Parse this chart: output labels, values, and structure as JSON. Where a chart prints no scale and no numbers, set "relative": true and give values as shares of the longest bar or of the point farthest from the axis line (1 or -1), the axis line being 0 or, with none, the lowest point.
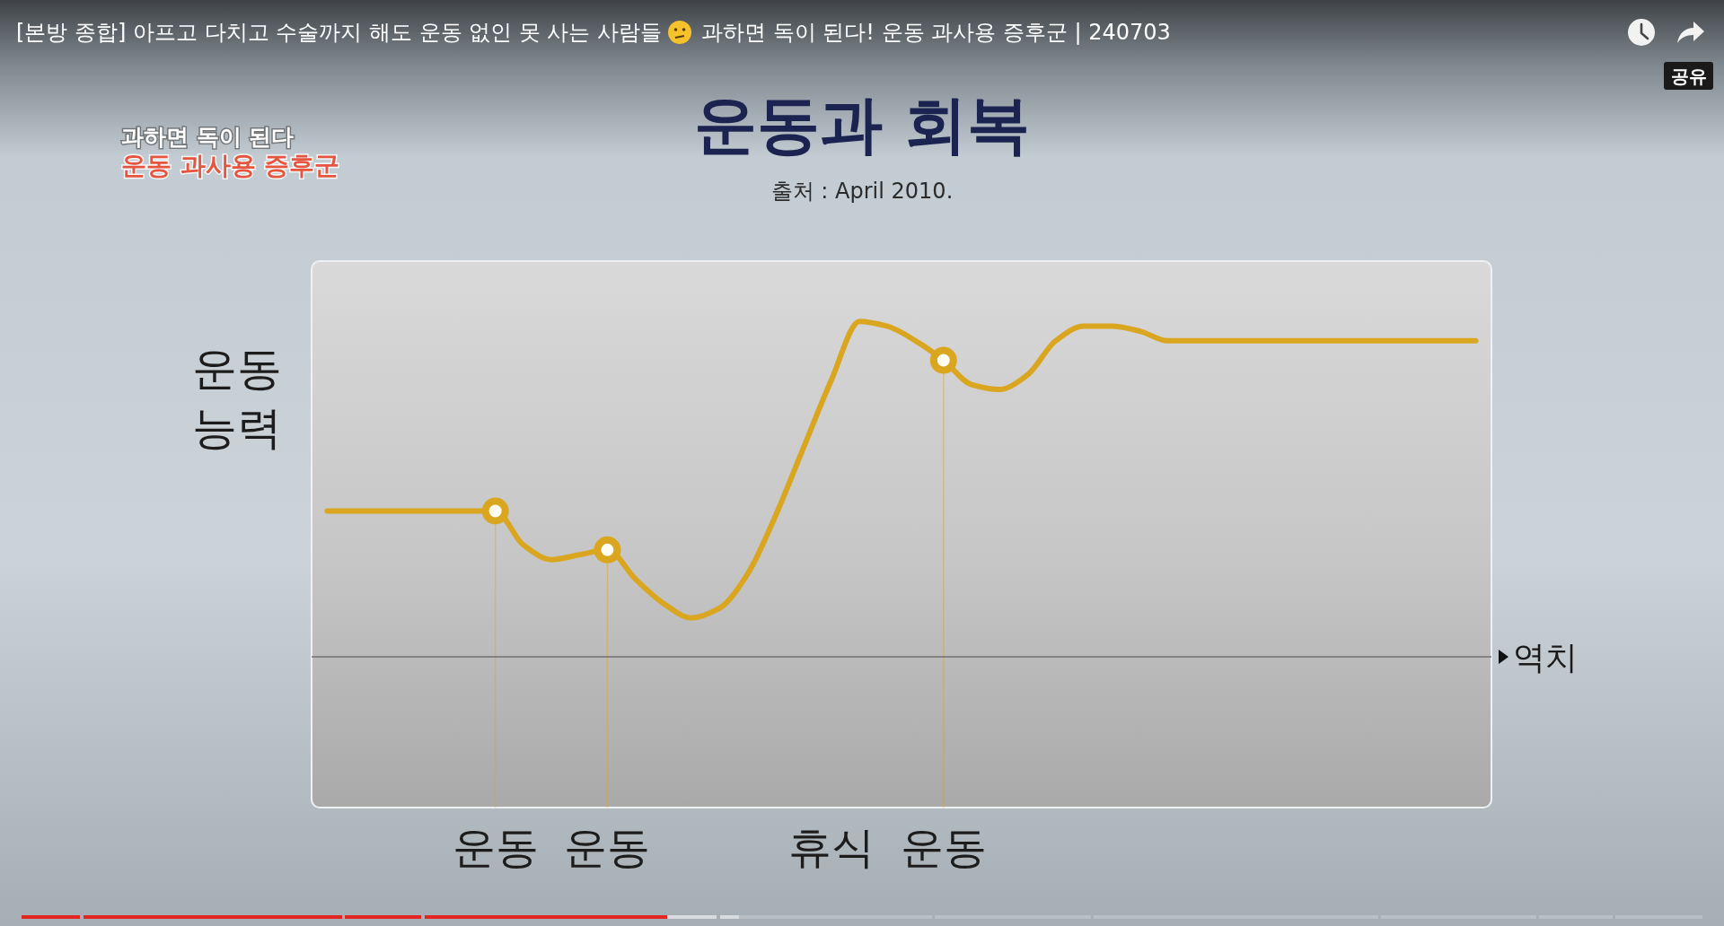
{
  "chart_data": {
    "type": "line",
    "title": "운동과 회복",
    "ylabel": "운동\n능력",
    "relative": true,
    "categories": [
      null,
      null,
      null,
      null,
      null,
      null,
      "운동",
      null,
      null,
      null,
      "운동",
      null,
      null,
      null,
      null,
      null,
      null,
      null,
      "휴식",
      null,
      null,
      null,
      "운동",
      null,
      null,
      null,
      null,
      null,
      null,
      null,
      null,
      null,
      null,
      null,
      null,
      null,
      null,
      null,
      null,
      null,
      null,
      null
    ],
    "series": [
      {
        "color": "#dba61f",
        "values": [
          0.61,
          0.61,
          0.61,
          0.61,
          0.61,
          0.61,
          0.61,
          0.54,
          0.51,
          0.52,
          0.53,
          0.47,
          0.42,
          0.39,
          0.41,
          0.48,
          0.6,
          0.74,
          0.88,
          1,
          0.99,
          0.96,
          0.92,
          0.87,
          0.86,
          0.89,
          0.96,
          0.99,
          0.99,
          0.98,
          0.96,
          0.96,
          0.96,
          0.96,
          0.96,
          0.96,
          0.96,
          0.96,
          0.96,
          0.96,
          0.96,
          0.96
        ]
      },
      {
        "type": "lollipop",
        "color": "#dba61f",
        "marker": "circle",
        "values": [
          null,
          null,
          null,
          null,
          null,
          null,
          0.61,
          null,
          null,
          null,
          0.53,
          null,
          null,
          null,
          null,
          null,
          null,
          null,
          null,
          null,
          null,
          null,
          0.92,
          null,
          null,
          null,
          null,
          null,
          null,
          null,
          null,
          null,
          null,
          null,
          null,
          null,
          null,
          null,
          null,
          null,
          null,
          null
        ]
      }
    ],
    "ref_lines": [
      {
        "axis": "y",
        "value": 0.31,
        "label": "역치",
        "color": "#707070"
      }
    ],
    "annotations": [
      "출처 : April 2010.",
      "과하면 독이 된다",
      "운동 과사용 증후군",
      "[본방 종합] 아프고 다치고 수술까지 해도 운동 없인 못 사는 사람들",
      "과하면 독이 된다! 운동 과사용 증후군 | 240703",
      "공유"
    ]
  }
}
